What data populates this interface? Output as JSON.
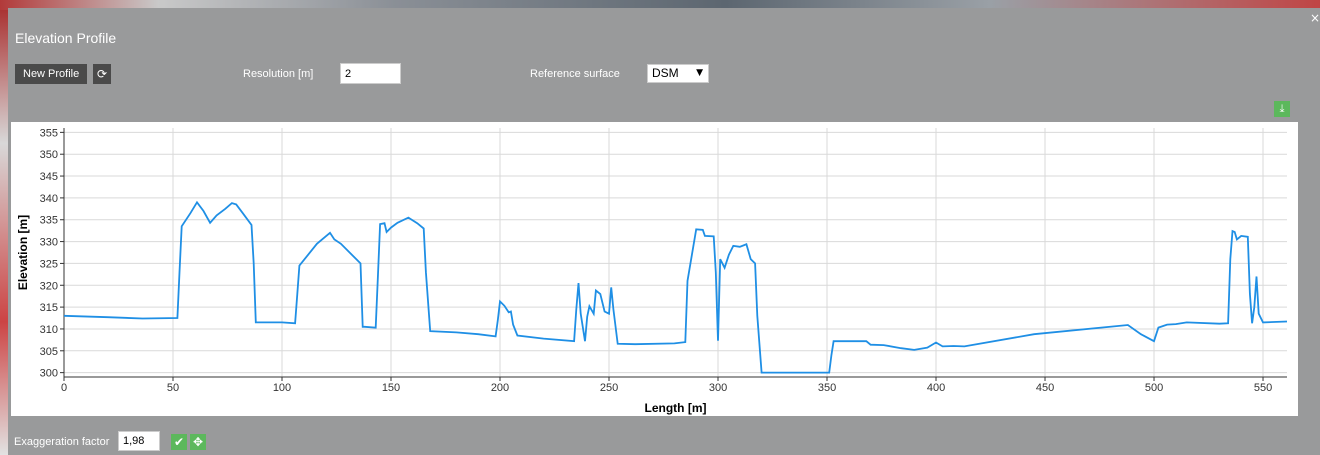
{
  "panel": {
    "title": "Elevation Profile",
    "close_glyph": "×"
  },
  "toolbar": {
    "new_profile_label": "New Profile",
    "refresh_icon": "refresh-icon",
    "resolution_label": "Resolution [m]",
    "resolution_value": "2",
    "reference_label": "Reference surface",
    "reference_value": "DSM",
    "download_icon": "download-icon"
  },
  "footer": {
    "exaggeration_label": "Exaggeration factor",
    "exaggeration_value": "1,98",
    "apply_icon": "check-icon",
    "move_icon": "move-icon"
  },
  "colors": {
    "line": "#1f8fe5",
    "grid": "#d9d9d9",
    "green": "#5cb85c",
    "panel": "#999a9b"
  },
  "chart_data": {
    "type": "line",
    "xlabel": "Length [m]",
    "ylabel": "Elevation [m]",
    "xlim": [
      0,
      561
    ],
    "ylim": [
      299,
      356
    ],
    "xticks": [
      0,
      50,
      100,
      150,
      200,
      250,
      300,
      350,
      400,
      450,
      500,
      550
    ],
    "yticks": [
      300,
      305,
      310,
      315,
      320,
      325,
      330,
      335,
      340,
      345,
      350,
      355
    ],
    "grid": true,
    "series": [
      {
        "x": [
          0,
          20,
          36,
          52,
          53,
          54,
          58,
          61,
          64,
          67,
          70,
          74,
          77,
          79,
          82,
          86,
          87,
          88,
          100,
          106,
          107,
          108,
          116,
          122,
          124,
          127,
          131,
          136,
          137,
          138,
          143,
          144,
          145,
          147,
          148,
          150,
          153,
          158,
          162,
          165,
          166,
          168,
          180,
          190,
          198,
          199,
          200,
          202,
          204,
          205,
          206,
          208,
          220,
          234,
          235,
          236,
          237,
          239,
          240,
          241,
          243,
          244,
          246,
          248,
          250,
          251,
          252,
          254,
          262,
          280,
          285,
          286,
          290,
          293,
          294,
          298,
          299,
          300,
          301,
          303,
          305,
          307,
          310,
          312,
          313,
          315,
          317,
          318,
          320,
          335,
          345,
          351,
          352,
          353,
          360,
          368,
          370,
          376,
          384,
          390,
          396,
          400,
          403,
          408,
          413,
          445,
          488,
          494,
          500,
          502,
          506,
          510,
          515,
          530,
          534,
          535,
          536,
          537,
          538,
          540,
          543,
          544,
          545,
          546,
          547,
          548,
          550,
          561
        ],
        "y": [
          313,
          312.7,
          312.4,
          312.5,
          323,
          333.5,
          336.5,
          339,
          337,
          334.3,
          336,
          337.5,
          338.8,
          338.5,
          336.5,
          333.8,
          325,
          311.5,
          311.5,
          311.3,
          318,
          324.5,
          329.5,
          332,
          330.5,
          329.5,
          327.5,
          325,
          310.5,
          310.5,
          310.3,
          322,
          334,
          334.2,
          332.2,
          333.2,
          334.3,
          335.5,
          334.2,
          333,
          323,
          309.5,
          309.2,
          308.8,
          308.3,
          312,
          316.3,
          315.3,
          313.8,
          314,
          311,
          308.5,
          307.8,
          307.2,
          314.5,
          320.5,
          313.5,
          307.2,
          312.8,
          315.2,
          313.5,
          318.8,
          318,
          314,
          313.5,
          319.5,
          314.5,
          306.6,
          306.5,
          306.7,
          307,
          321,
          332.8,
          332.7,
          331.3,
          331.2,
          323,
          307.3,
          326,
          324,
          327,
          329,
          328.8,
          329.2,
          329.4,
          326,
          325,
          313,
          300,
          300,
          300,
          300,
          304,
          307.2,
          307.2,
          307.2,
          306.4,
          306.3,
          305.6,
          305.2,
          305.7,
          306.9,
          306,
          306.1,
          306,
          308.8,
          310.9,
          308.8,
          307.2,
          310.3,
          311,
          311.1,
          311.5,
          311.2,
          311.3,
          326,
          332.4,
          332.2,
          330.5,
          331.3,
          331.1,
          318,
          311.3,
          315,
          322,
          313.5,
          311.5,
          311.7
        ]
      }
    ]
  }
}
